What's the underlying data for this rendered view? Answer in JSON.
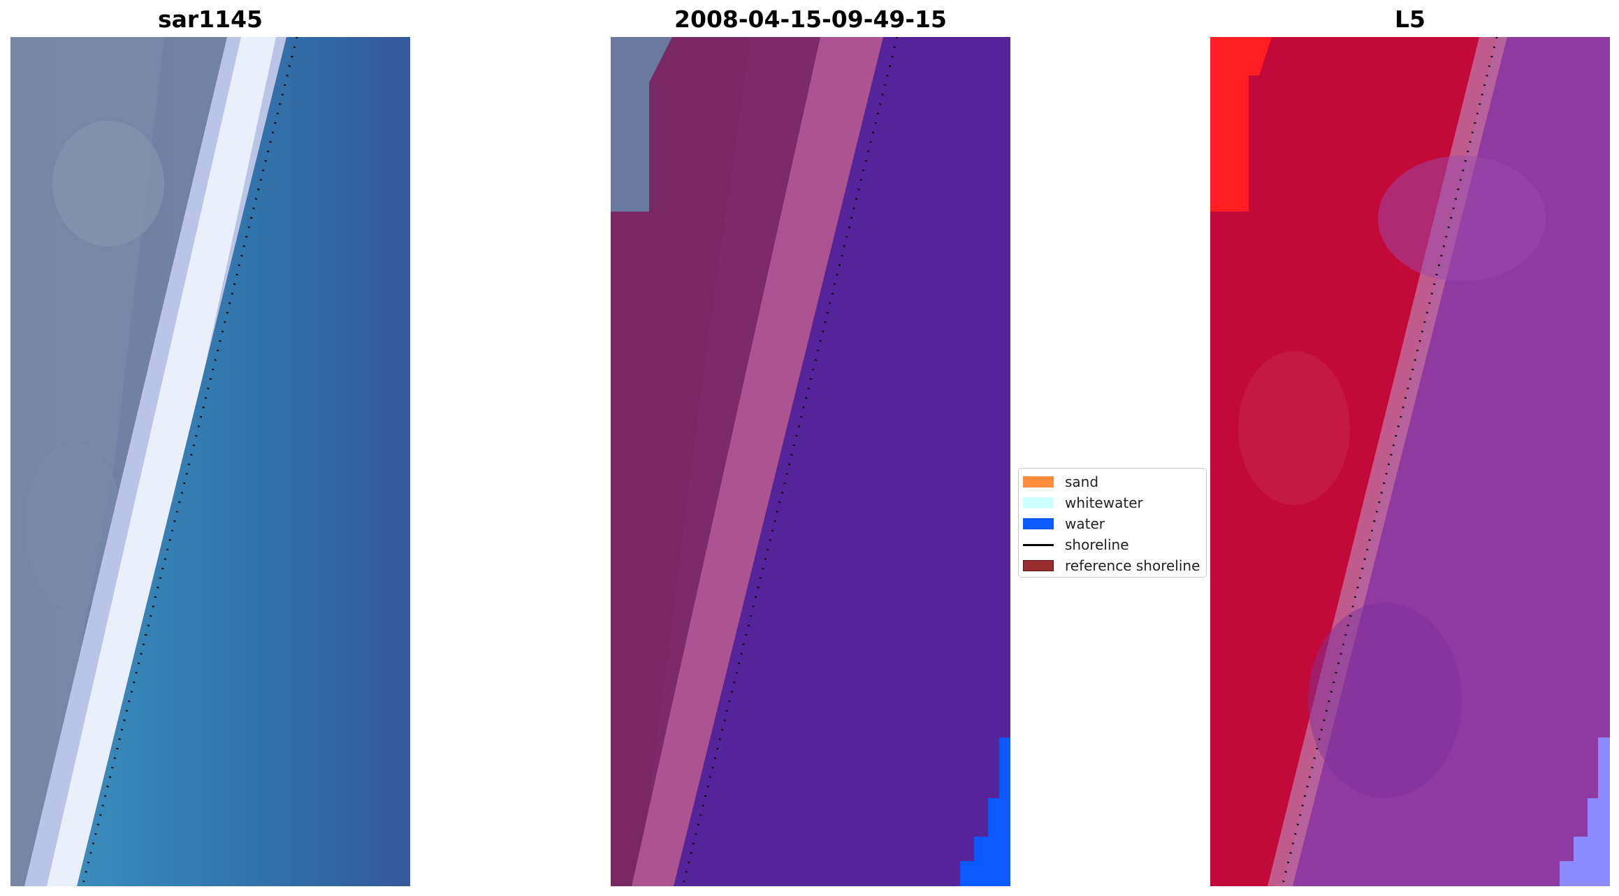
{
  "panels": [
    {
      "id": "rgb",
      "title": "sar1145"
    },
    {
      "id": "classified",
      "title": "2008-04-15-09-49-15"
    },
    {
      "id": "index",
      "title": "L5"
    }
  ],
  "legend": {
    "items": [
      {
        "label": "sand",
        "kind": "patch",
        "color": "#ff8c3c"
      },
      {
        "label": "whitewater",
        "kind": "patch",
        "color": "#ccffff"
      },
      {
        "label": "water",
        "kind": "patch",
        "color": "#0a5aff"
      },
      {
        "label": "shoreline",
        "kind": "line",
        "color": "#000000"
      },
      {
        "label": "reference shoreline",
        "kind": "patch",
        "color": "#9b2d30"
      }
    ]
  }
}
